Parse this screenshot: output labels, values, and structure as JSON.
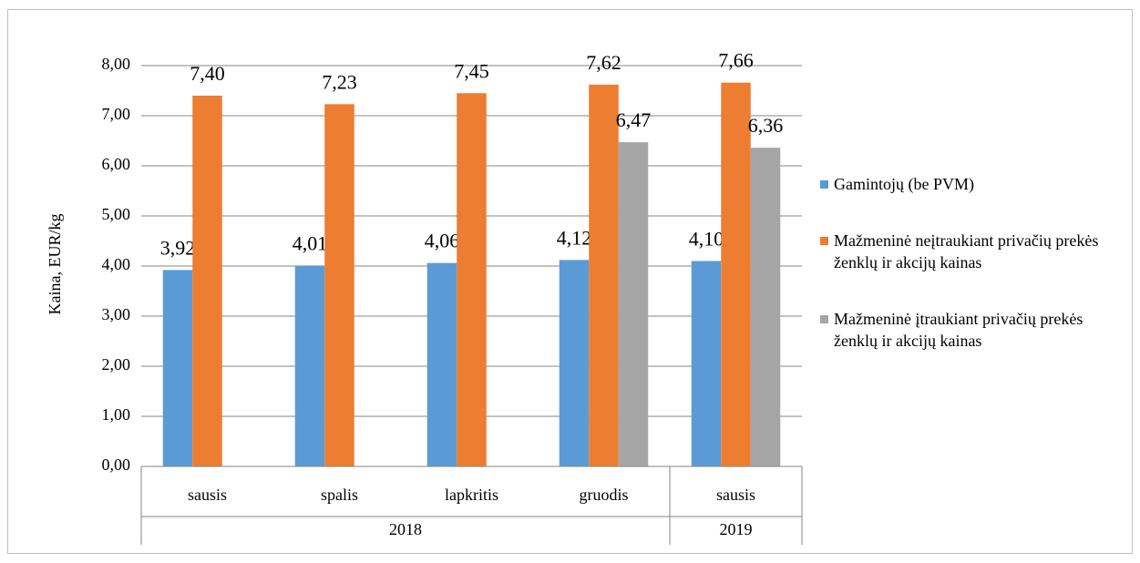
{
  "chart_data": {
    "type": "bar",
    "y_label": "Kaina, EUR/kg",
    "categories": [
      "sausis",
      "spalis",
      "lapkritis",
      "gruodis",
      "sausis"
    ],
    "groups": [
      {
        "label": "2018",
        "span": 4
      },
      {
        "label": "2019",
        "span": 1
      }
    ],
    "series": [
      {
        "name": "Gamintojų (be PVM)",
        "color": "#5b9bd5",
        "values": [
          3.92,
          4.01,
          4.06,
          4.12,
          4.1
        ],
        "value_labels": [
          "3,92",
          "4,01",
          "4,06",
          "4,12",
          "4,10"
        ]
      },
      {
        "name": "Mažmeninė neįtraukiant privačių prekės ženklų ir akcijų kainas",
        "color": "#ed7d31",
        "values": [
          7.4,
          7.23,
          7.45,
          7.62,
          7.66
        ],
        "value_labels": [
          "7,40",
          "7,23",
          "7,45",
          "7,62",
          "7,66"
        ]
      },
      {
        "name": "Mažmeninė įtraukiant privačių prekės ženklų ir akcijų kainas",
        "color": "#a5a5a5",
        "values": [
          null,
          null,
          null,
          6.47,
          6.36
        ],
        "value_labels": [
          null,
          null,
          null,
          "6,47",
          "6,36"
        ]
      }
    ],
    "ylim": [
      0,
      8
    ],
    "yticks": [
      {
        "value": 0,
        "label": "0,00"
      },
      {
        "value": 1,
        "label": "1,00"
      },
      {
        "value": 2,
        "label": "2,00"
      },
      {
        "value": 3,
        "label": "3,00"
      },
      {
        "value": 4,
        "label": "4,00"
      },
      {
        "value": 5,
        "label": "5,00"
      },
      {
        "value": 6,
        "label": "6,00"
      },
      {
        "value": 7,
        "label": "7,00"
      },
      {
        "value": 8,
        "label": "8,00"
      }
    ],
    "grid": true,
    "legend": "right"
  }
}
